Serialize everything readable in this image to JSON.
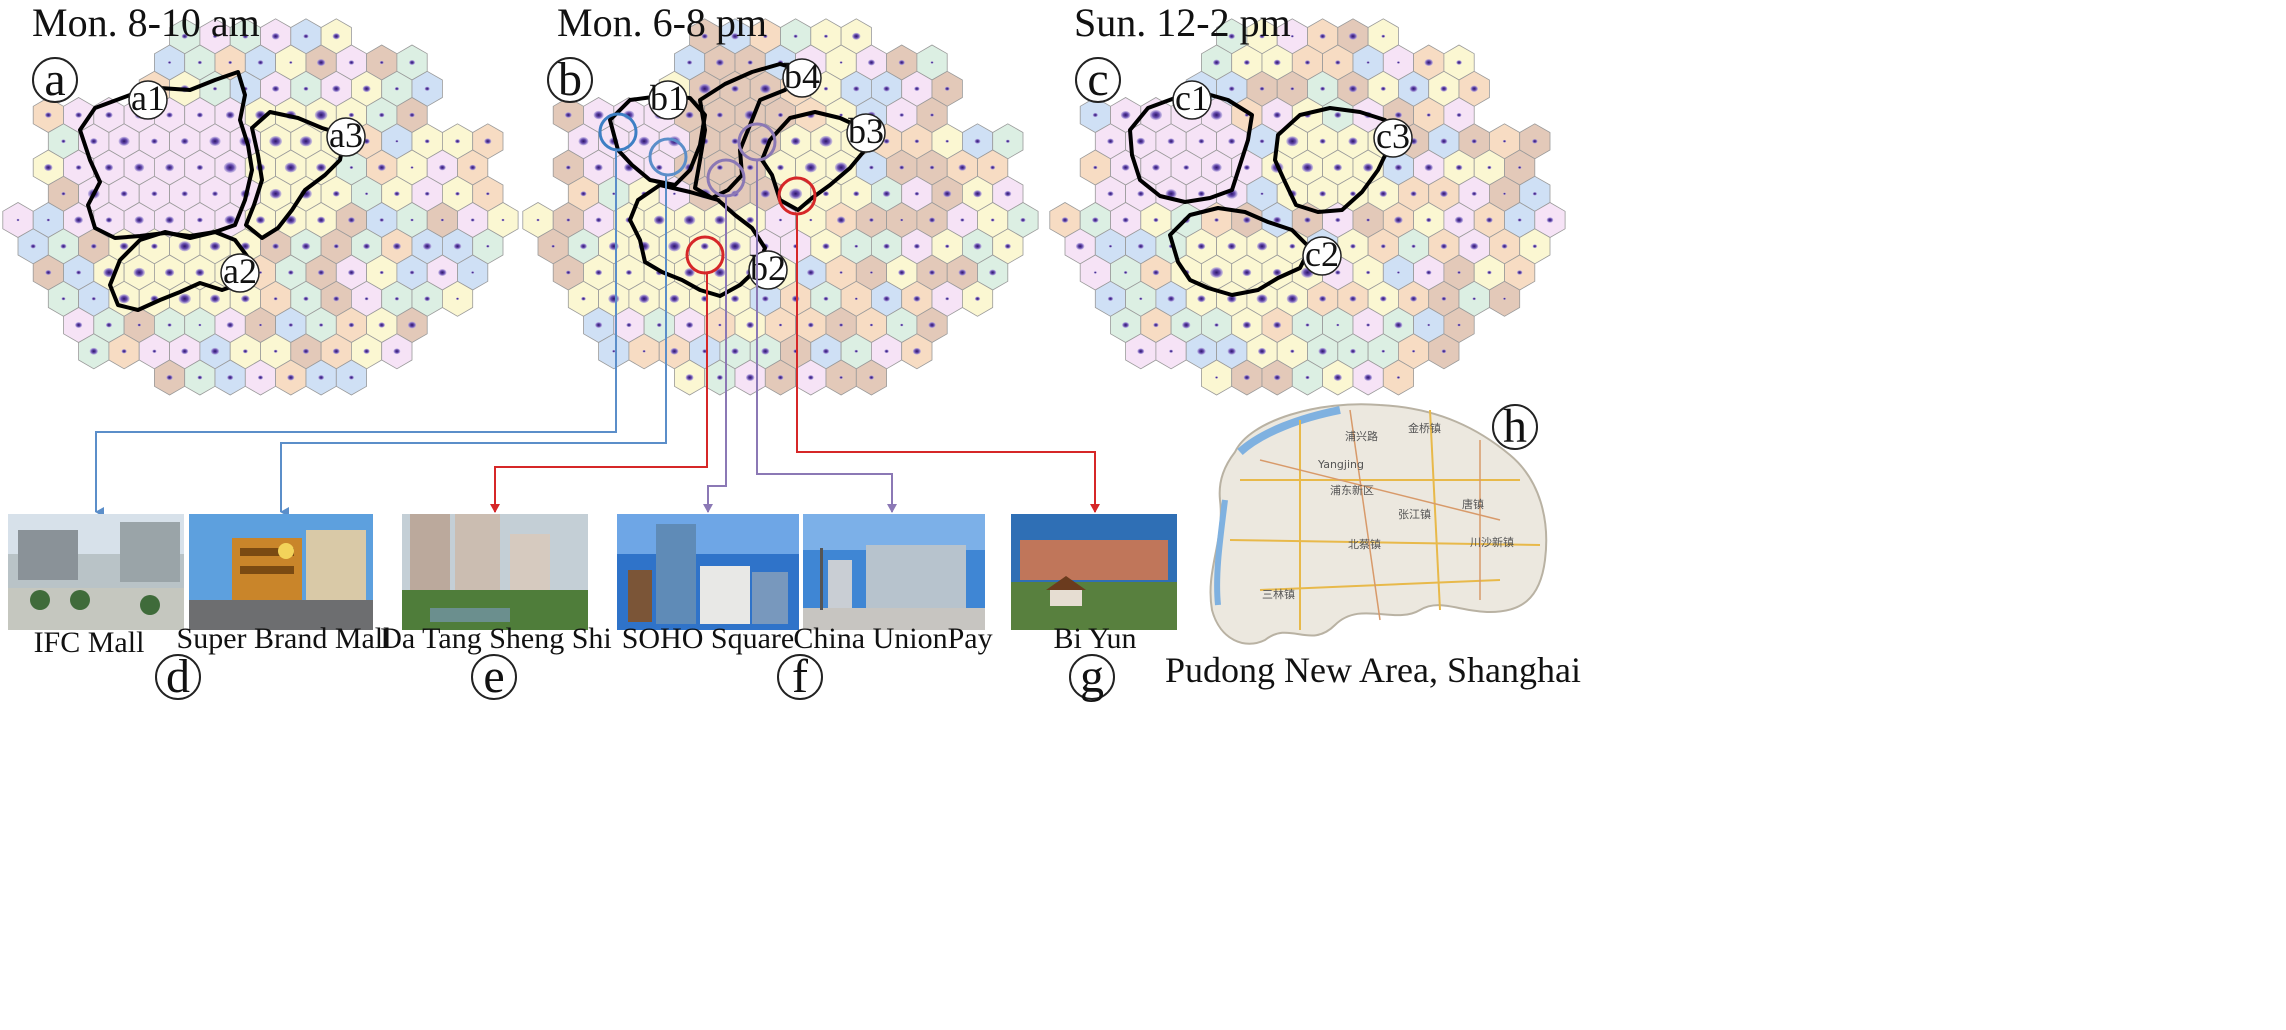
{
  "panels": [
    {
      "title": "Mon. 8-10 am",
      "letter": "a",
      "regions": [
        "a1",
        "a2",
        "a3"
      ]
    },
    {
      "title": "Mon. 6-8 pm",
      "letter": "b",
      "regions": [
        "b1",
        "b2",
        "b3",
        "b4"
      ]
    },
    {
      "title": "Sun. 12-2 pm",
      "letter": "c",
      "regions": [
        "c1",
        "c2",
        "c3"
      ]
    }
  ],
  "photos": {
    "d": {
      "letter": "d",
      "captions": [
        "IFC Mall",
        "Super Brand Mall"
      ]
    },
    "e": {
      "letter": "e",
      "captions": [
        "Da Tang Sheng Shi"
      ]
    },
    "f": {
      "letter": "f",
      "captions": [
        "SOHO Square",
        "China UnionPay"
      ]
    },
    "g": {
      "letter": "g",
      "captions": [
        "Bi Yun"
      ]
    }
  },
  "map": {
    "letter": "h",
    "caption": "Pudong New Area, Shanghai",
    "labels": [
      "浦兴路",
      "金桥镇",
      "Yangjing",
      "浦东新区",
      "张江镇",
      "唐镇",
      "北蔡镇",
      "川沙新镇",
      "三林镇"
    ]
  },
  "colors": {
    "cell_palette": [
      "#f6e3f6",
      "#fbf7d2",
      "#dcefe3",
      "#cfe0f5",
      "#f7dcc3",
      "#e3c9b9"
    ],
    "cell_stroke": "#9a9a9a",
    "dot": "#5b3d99",
    "region_border": "#000000",
    "link_blue": "#5b8ec9",
    "link_red": "#d62728",
    "link_purple": "#8b78b5"
  }
}
